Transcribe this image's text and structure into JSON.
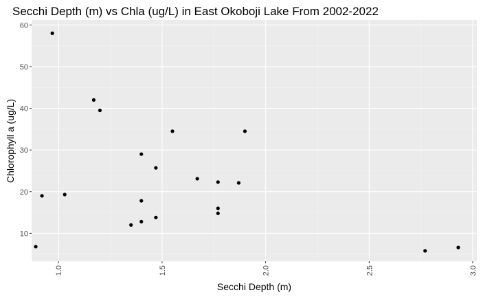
{
  "chart_data": {
    "type": "scatter",
    "title": "Secchi Depth (m) vs Chla (ug/L) in East Okoboji Lake From 2002-2022",
    "xlabel": "Secchi Depth (m)",
    "ylabel": "Chlorophyll a (ug/L)",
    "xlim": [
      0.87,
      3.02
    ],
    "ylim": [
      3.3,
      61.2
    ],
    "x_ticks": [
      1.0,
      1.5,
      2.0,
      2.5,
      3.0
    ],
    "x_tick_labels": [
      "1.0",
      "1.5",
      "2.0",
      "2.5",
      "3.0"
    ],
    "y_ticks": [
      10,
      20,
      30,
      40,
      50,
      60
    ],
    "y_tick_labels": [
      "10",
      "20",
      "30",
      "40",
      "50",
      "60"
    ],
    "grid": true,
    "legend": "none",
    "colors": {
      "panel_background": "#ebebeb",
      "grid_major": "#ffffff",
      "grid_minor": "#f5f5f5",
      "point": "#000000",
      "tick_label": "#4d4d4d",
      "tick_mark": "#333333"
    },
    "points": [
      {
        "x": 0.89,
        "y": 6.8
      },
      {
        "x": 0.92,
        "y": 19.0
      },
      {
        "x": 0.97,
        "y": 58.0
      },
      {
        "x": 1.03,
        "y": 19.3
      },
      {
        "x": 1.17,
        "y": 42.0
      },
      {
        "x": 1.2,
        "y": 39.5
      },
      {
        "x": 1.35,
        "y": 12.0
      },
      {
        "x": 1.4,
        "y": 12.8
      },
      {
        "x": 1.4,
        "y": 17.8
      },
      {
        "x": 1.4,
        "y": 29.0
      },
      {
        "x": 1.47,
        "y": 13.8
      },
      {
        "x": 1.47,
        "y": 25.7
      },
      {
        "x": 1.55,
        "y": 34.5
      },
      {
        "x": 1.67,
        "y": 23.1
      },
      {
        "x": 1.77,
        "y": 14.8
      },
      {
        "x": 1.77,
        "y": 16.0
      },
      {
        "x": 1.77,
        "y": 22.3
      },
      {
        "x": 1.87,
        "y": 22.1
      },
      {
        "x": 1.9,
        "y": 34.5
      },
      {
        "x": 2.77,
        "y": 5.8
      },
      {
        "x": 2.93,
        "y": 6.6
      }
    ]
  }
}
